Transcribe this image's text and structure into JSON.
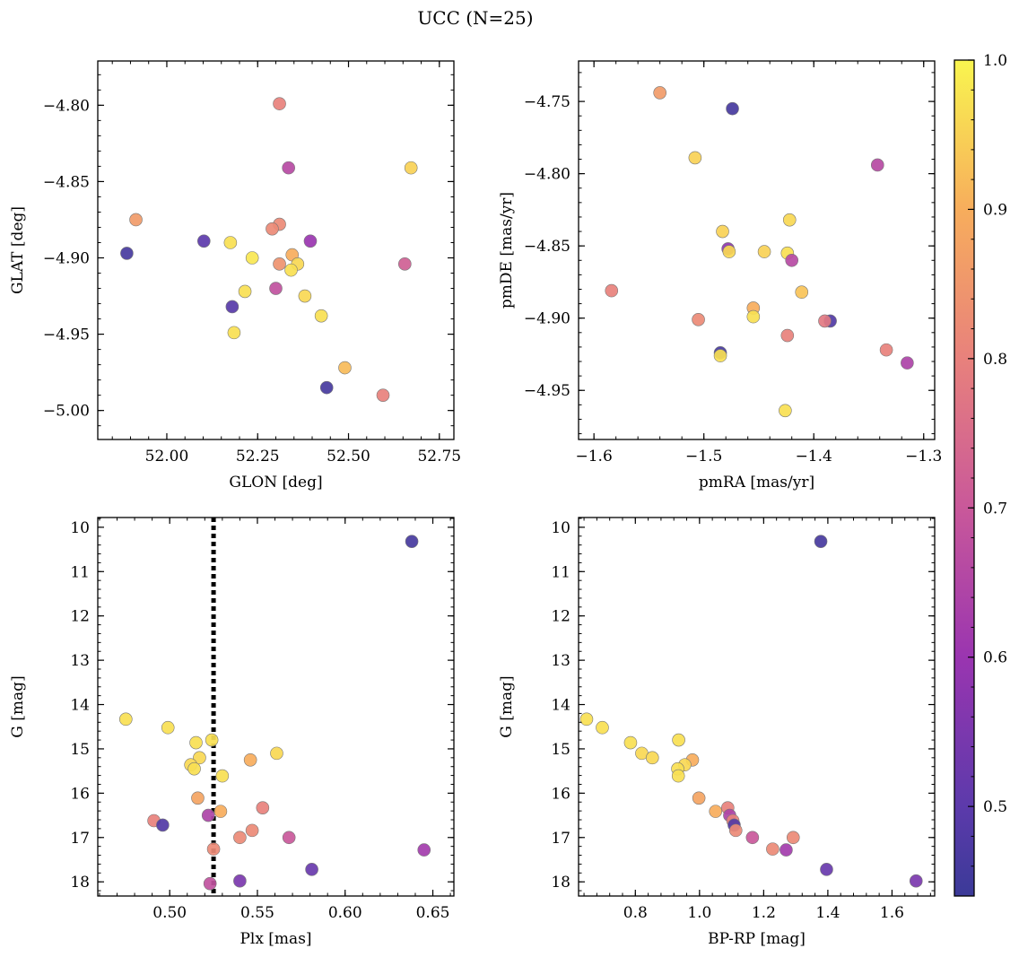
{
  "figure": {
    "title": "UCC (N=25)"
  },
  "colorbar": {
    "min": 0.44,
    "max": 1.0,
    "ticks": [
      0.5,
      0.6,
      0.7,
      0.8,
      0.9,
      1.0
    ],
    "tick_labels": [
      "0.5",
      "0.6",
      "0.7",
      "0.8",
      "0.9",
      "1.0"
    ],
    "colormap": "plasma"
  },
  "chart_data": [
    {
      "type": "scatter",
      "name": "sky-position",
      "xlabel": "GLON [deg]",
      "ylabel": "GLAT [deg]",
      "xlim": [
        51.81,
        52.79
      ],
      "ylim": [
        -5.019,
        -4.771
      ],
      "y_inverted": false,
      "xticks": [
        52.0,
        52.25,
        52.5,
        52.75
      ],
      "xtick_labels": [
        "52.00",
        "52.25",
        "52.50",
        "52.75"
      ],
      "yticks": [
        -5.0,
        -4.95,
        -4.9,
        -4.85,
        -4.8
      ],
      "ytick_labels": [
        "−5.00",
        "−4.95",
        "−4.90",
        "−4.85",
        "−4.80"
      ],
      "points": [
        {
          "x": 52.31,
          "y": -4.799,
          "c": 0.8
        },
        {
          "x": 52.335,
          "y": -4.841,
          "c": 0.66
        },
        {
          "x": 52.672,
          "y": -4.841,
          "c": 0.95
        },
        {
          "x": 51.915,
          "y": -4.875,
          "c": 0.86
        },
        {
          "x": 52.31,
          "y": -4.878,
          "c": 0.82
        },
        {
          "x": 52.29,
          "y": -4.881,
          "c": 0.82
        },
        {
          "x": 51.89,
          "y": -4.897,
          "c": 0.46
        },
        {
          "x": 52.102,
          "y": -4.889,
          "c": 0.5
        },
        {
          "x": 52.175,
          "y": -4.89,
          "c": 0.97
        },
        {
          "x": 52.395,
          "y": -4.889,
          "c": 0.6
        },
        {
          "x": 52.235,
          "y": -4.9,
          "c": 0.98
        },
        {
          "x": 52.345,
          "y": -4.898,
          "c": 0.9
        },
        {
          "x": 52.31,
          "y": -4.904,
          "c": 0.84
        },
        {
          "x": 52.36,
          "y": -4.904,
          "c": 0.96
        },
        {
          "x": 52.655,
          "y": -4.904,
          "c": 0.72
        },
        {
          "x": 52.342,
          "y": -4.908,
          "c": 0.97
        },
        {
          "x": 52.3,
          "y": -4.92,
          "c": 0.68
        },
        {
          "x": 52.215,
          "y": -4.922,
          "c": 0.97
        },
        {
          "x": 52.38,
          "y": -4.925,
          "c": 0.96
        },
        {
          "x": 52.18,
          "y": -4.932,
          "c": 0.49
        },
        {
          "x": 52.425,
          "y": -4.938,
          "c": 0.97
        },
        {
          "x": 52.185,
          "y": -4.949,
          "c": 0.97
        },
        {
          "x": 52.49,
          "y": -4.972,
          "c": 0.92
        },
        {
          "x": 52.44,
          "y": -4.985,
          "c": 0.46
        },
        {
          "x": 52.595,
          "y": -4.99,
          "c": 0.8
        }
      ]
    },
    {
      "type": "scatter",
      "name": "proper-motion",
      "xlabel": "pmRA [mas/yr]",
      "ylabel": "pmDE [mas/yr]",
      "xlim": [
        -1.614,
        -1.29
      ],
      "ylim": [
        -4.984,
        -4.722
      ],
      "y_inverted": false,
      "xticks": [
        -1.6,
        -1.5,
        -1.4,
        -1.3
      ],
      "xtick_labels": [
        "−1.6",
        "−1.5",
        "−1.4",
        "−1.3"
      ],
      "yticks": [
        -4.95,
        -4.9,
        -4.85,
        -4.8,
        -4.75
      ],
      "ytick_labels": [
        "−4.95",
        "−4.90",
        "−4.85",
        "−4.80",
        "−4.75"
      ],
      "points": [
        {
          "x": -1.54,
          "y": -4.744,
          "c": 0.86
        },
        {
          "x": -1.474,
          "y": -4.755,
          "c": 0.46
        },
        {
          "x": -1.508,
          "y": -4.789,
          "c": 0.95
        },
        {
          "x": -1.342,
          "y": -4.794,
          "c": 0.66
        },
        {
          "x": -1.422,
          "y": -4.832,
          "c": 0.96
        },
        {
          "x": -1.483,
          "y": -4.84,
          "c": 0.95
        },
        {
          "x": -1.478,
          "y": -4.852,
          "c": 0.58
        },
        {
          "x": -1.477,
          "y": -4.854,
          "c": 0.96
        },
        {
          "x": -1.445,
          "y": -4.854,
          "c": 0.95
        },
        {
          "x": -1.424,
          "y": -4.855,
          "c": 0.97
        },
        {
          "x": -1.42,
          "y": -4.86,
          "c": 0.66
        },
        {
          "x": -1.584,
          "y": -4.881,
          "c": 0.8
        },
        {
          "x": -1.411,
          "y": -4.882,
          "c": 0.93
        },
        {
          "x": -1.455,
          "y": -4.893,
          "c": 0.9
        },
        {
          "x": -1.455,
          "y": -4.899,
          "c": 0.97
        },
        {
          "x": -1.505,
          "y": -4.901,
          "c": 0.82
        },
        {
          "x": -1.385,
          "y": -4.902,
          "c": 0.48
        },
        {
          "x": -1.39,
          "y": -4.902,
          "c": 0.78
        },
        {
          "x": -1.424,
          "y": -4.912,
          "c": 0.8
        },
        {
          "x": -1.334,
          "y": -4.922,
          "c": 0.8
        },
        {
          "x": -1.485,
          "y": -4.924,
          "c": 0.46
        },
        {
          "x": -1.485,
          "y": -4.926,
          "c": 0.97
        },
        {
          "x": -1.315,
          "y": -4.931,
          "c": 0.64
        },
        {
          "x": -1.426,
          "y": -4.964,
          "c": 0.97
        }
      ]
    },
    {
      "type": "scatter",
      "name": "parallax-magnitude",
      "xlabel": "Plx [mas]",
      "ylabel": "G [mag]",
      "xlim": [
        0.459,
        0.662
      ],
      "ylim": [
        9.78,
        18.32
      ],
      "y_inverted": true,
      "xticks": [
        0.5,
        0.55,
        0.6,
        0.65
      ],
      "xtick_labels": [
        "0.50",
        "0.55",
        "0.60",
        "0.65"
      ],
      "yticks": [
        10,
        11,
        12,
        13,
        14,
        15,
        16,
        17,
        18
      ],
      "ytick_labels": [
        "10",
        "11",
        "12",
        "13",
        "14",
        "15",
        "16",
        "17",
        "18"
      ],
      "vline": 0.525,
      "points": [
        {
          "x": 0.638,
          "y": 10.32,
          "c": 0.46
        },
        {
          "x": 0.475,
          "y": 14.33,
          "c": 0.97
        },
        {
          "x": 0.499,
          "y": 14.52,
          "c": 0.97
        },
        {
          "x": 0.524,
          "y": 14.8,
          "c": 0.97
        },
        {
          "x": 0.515,
          "y": 14.86,
          "c": 0.97
        },
        {
          "x": 0.561,
          "y": 15.1,
          "c": 0.96
        },
        {
          "x": 0.517,
          "y": 15.2,
          "c": 0.96
        },
        {
          "x": 0.546,
          "y": 15.25,
          "c": 0.9
        },
        {
          "x": 0.512,
          "y": 15.36,
          "c": 0.96
        },
        {
          "x": 0.514,
          "y": 15.45,
          "c": 0.97
        },
        {
          "x": 0.53,
          "y": 15.61,
          "c": 0.97
        },
        {
          "x": 0.516,
          "y": 16.11,
          "c": 0.88
        },
        {
          "x": 0.529,
          "y": 16.41,
          "c": 0.9
        },
        {
          "x": 0.553,
          "y": 16.33,
          "c": 0.8
        },
        {
          "x": 0.522,
          "y": 16.5,
          "c": 0.64
        },
        {
          "x": 0.491,
          "y": 16.62,
          "c": 0.8
        },
        {
          "x": 0.496,
          "y": 16.72,
          "c": 0.48
        },
        {
          "x": 0.547,
          "y": 16.84,
          "c": 0.82
        },
        {
          "x": 0.54,
          "y": 17.0,
          "c": 0.82
        },
        {
          "x": 0.568,
          "y": 17.0,
          "c": 0.7
        },
        {
          "x": 0.525,
          "y": 17.26,
          "c": 0.82
        },
        {
          "x": 0.645,
          "y": 17.28,
          "c": 0.62
        },
        {
          "x": 0.581,
          "y": 17.72,
          "c": 0.52
        },
        {
          "x": 0.54,
          "y": 17.98,
          "c": 0.55
        },
        {
          "x": 0.523,
          "y": 18.04,
          "c": 0.68
        }
      ]
    },
    {
      "type": "scatter",
      "name": "color-magnitude",
      "xlabel": "BP-RP [mag]",
      "ylabel": "G [mag]",
      "xlim": [
        0.623,
        1.733
      ],
      "ylim": [
        9.78,
        18.32
      ],
      "y_inverted": true,
      "xticks": [
        0.8,
        1.0,
        1.2,
        1.4,
        1.6
      ],
      "xtick_labels": [
        "0.8",
        "1.0",
        "1.2",
        "1.4",
        "1.6"
      ],
      "yticks": [
        10,
        11,
        12,
        13,
        14,
        15,
        16,
        17,
        18
      ],
      "ytick_labels": [
        "10",
        "11",
        "12",
        "13",
        "14",
        "15",
        "16",
        "17",
        "18"
      ],
      "points": [
        {
          "x": 1.378,
          "y": 10.32,
          "c": 0.46
        },
        {
          "x": 0.648,
          "y": 14.33,
          "c": 0.97
        },
        {
          "x": 0.697,
          "y": 14.52,
          "c": 0.97
        },
        {
          "x": 0.785,
          "y": 14.86,
          "c": 0.97
        },
        {
          "x": 0.935,
          "y": 14.8,
          "c": 0.97
        },
        {
          "x": 0.82,
          "y": 15.1,
          "c": 0.96
        },
        {
          "x": 0.853,
          "y": 15.2,
          "c": 0.96
        },
        {
          "x": 0.978,
          "y": 15.25,
          "c": 0.9
        },
        {
          "x": 0.954,
          "y": 15.36,
          "c": 0.96
        },
        {
          "x": 0.932,
          "y": 15.45,
          "c": 0.97
        },
        {
          "x": 0.934,
          "y": 15.61,
          "c": 0.97
        },
        {
          "x": 0.998,
          "y": 16.11,
          "c": 0.88
        },
        {
          "x": 1.05,
          "y": 16.41,
          "c": 0.9
        },
        {
          "x": 1.088,
          "y": 16.33,
          "c": 0.8
        },
        {
          "x": 1.094,
          "y": 16.5,
          "c": 0.64
        },
        {
          "x": 1.104,
          "y": 16.62,
          "c": 0.8
        },
        {
          "x": 1.108,
          "y": 16.72,
          "c": 0.48
        },
        {
          "x": 1.113,
          "y": 16.84,
          "c": 0.82
        },
        {
          "x": 1.165,
          "y": 17.0,
          "c": 0.7
        },
        {
          "x": 1.292,
          "y": 17.0,
          "c": 0.82
        },
        {
          "x": 1.228,
          "y": 17.26,
          "c": 0.82
        },
        {
          "x": 1.27,
          "y": 17.28,
          "c": 0.62
        },
        {
          "x": 1.396,
          "y": 17.72,
          "c": 0.52
        },
        {
          "x": 1.675,
          "y": 17.98,
          "c": 0.55
        }
      ]
    }
  ]
}
